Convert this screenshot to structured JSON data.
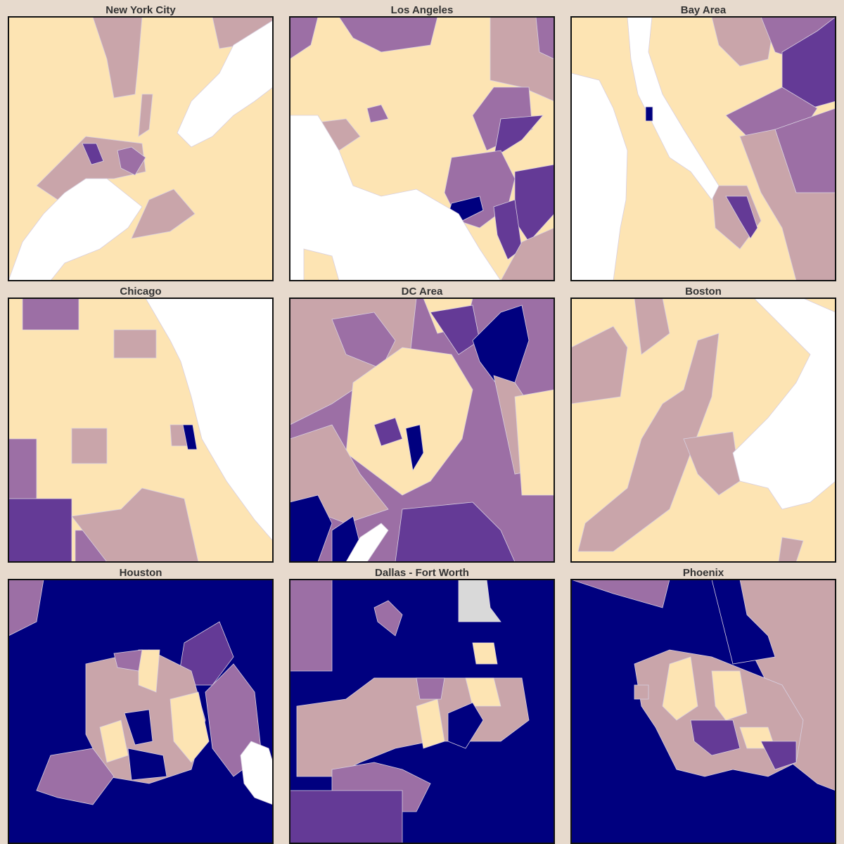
{
  "panels": [
    {
      "title": "New York City"
    },
    {
      "title": "Los Angeles"
    },
    {
      "title": "Bay Area"
    },
    {
      "title": "Chicago"
    },
    {
      "title": "DC Area"
    },
    {
      "title": "Boston"
    },
    {
      "title": "Houston"
    },
    {
      "title": "Dallas - Fort Worth"
    },
    {
      "title": "Phoenix"
    }
  ]
}
